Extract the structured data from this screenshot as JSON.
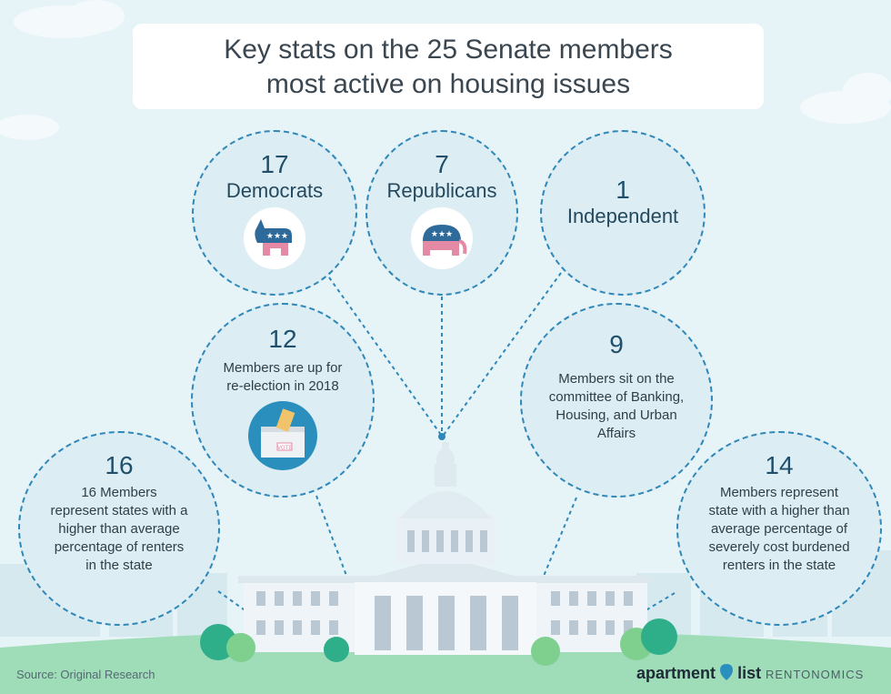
{
  "title": {
    "line1": "Key stats on the 25 Senate members",
    "line2": "most active on housing issues"
  },
  "stats": {
    "democrats": {
      "number": "17",
      "label": "Democrats"
    },
    "republicans": {
      "number": "7",
      "label": "Republicans"
    },
    "independent": {
      "number": "1",
      "label": "Independent"
    },
    "reelection": {
      "number": "12",
      "lines": [
        "Members are up for",
        "re-election in 2018"
      ],
      "ballot_text": "VOTE"
    },
    "banking": {
      "number": "9",
      "lines": [
        "Members sit on the",
        "committee of Banking,",
        "Housing, and Urban",
        "Affairs"
      ]
    },
    "renters": {
      "number": "16",
      "lines": [
        "16 Members",
        "represent states with a",
        "higher than average",
        "percentage of renters",
        "in the state"
      ]
    },
    "burdened": {
      "number": "14",
      "lines": [
        "Members represent",
        "state with a higher than",
        "average percentage of",
        "severely cost burdened",
        "renters in the state"
      ]
    }
  },
  "footer": {
    "source": "Source: Original Research",
    "brand_left": "apartment",
    "brand_right": "list",
    "brand_sub": "RENTONOMICS"
  },
  "colors": {
    "background": "#e6f3f7",
    "dashed_circle": "#2f88b9",
    "republican_blue": "#2f6b9a",
    "democrat_blue": "#2f6b9a",
    "mascot_pink": "#e48aa5",
    "grass": "#9fdcb8",
    "bush": "#2fae8a",
    "capitol": "#eef4f8"
  },
  "icons": [
    "donkey-icon",
    "elephant-icon",
    "ballot-box-icon",
    "capitol-building-icon",
    "map-pin-icon",
    "cloud-icon",
    "bush-icon"
  ]
}
